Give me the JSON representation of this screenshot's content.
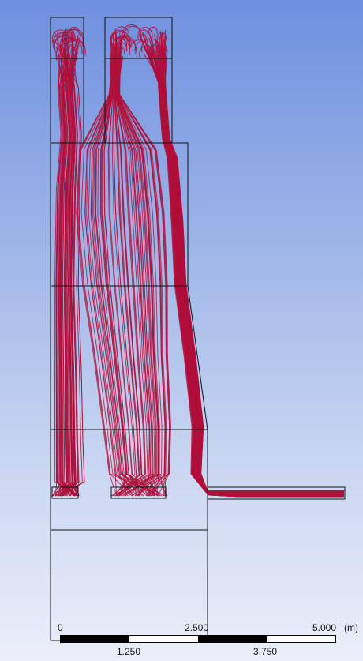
{
  "scene": {
    "line_color": "#b0103a",
    "outline_color": "#111111",
    "background_top": "#6f8fdf",
    "background_bottom": "#eaeff9"
  },
  "scale": {
    "top_labels": [
      "0",
      "2.500",
      "5.000"
    ],
    "unit": "(m)",
    "bottom_labels": [
      "1.250",
      "3.750"
    ],
    "segments": [
      "dark",
      "light",
      "dark",
      "light"
    ]
  }
}
